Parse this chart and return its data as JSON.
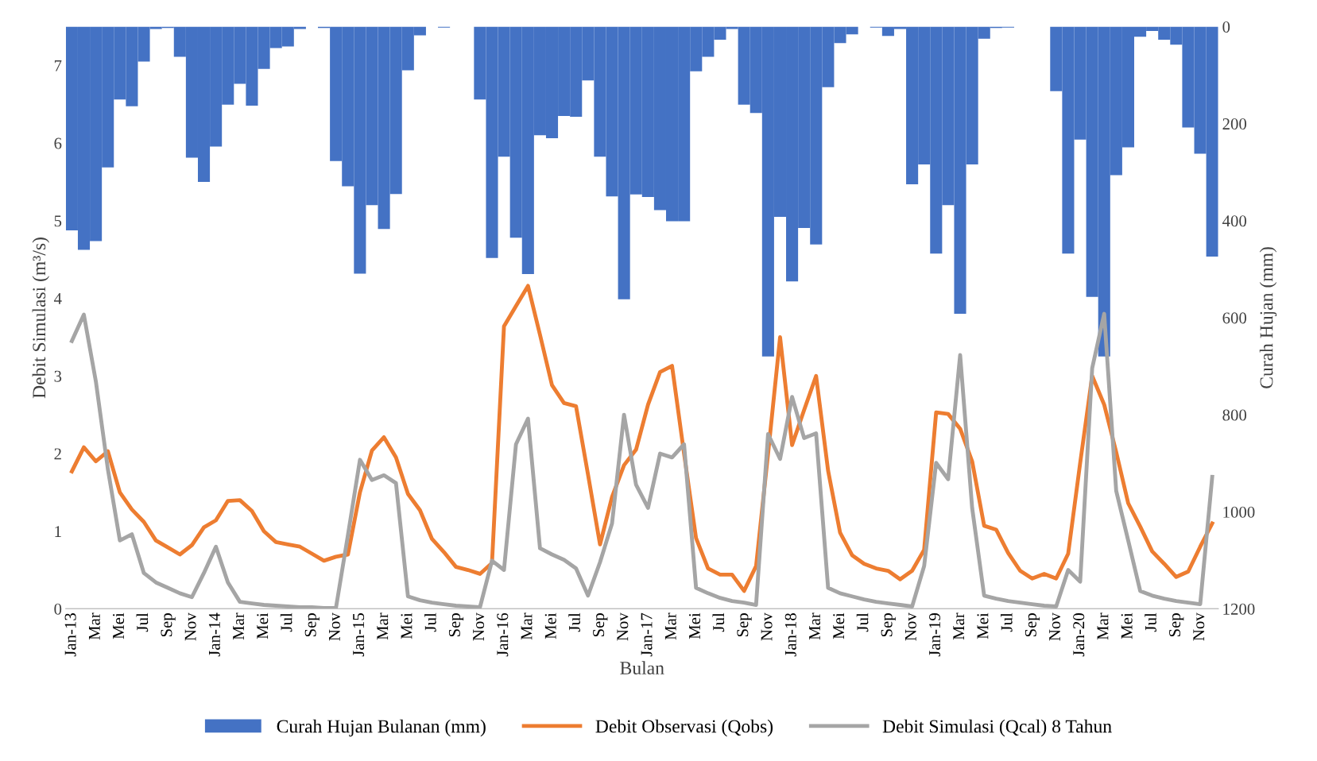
{
  "chart_data": {
    "type": "bar",
    "xlabel": "Bulan",
    "ylabel": "Debit Simulasi (m³/s)",
    "y2label": "Curah Hujan (mm)",
    "categories": [
      "Jan-13",
      null,
      "Mar",
      null,
      "Mei",
      null,
      "Jul",
      null,
      "Sep",
      null,
      "Nov",
      null,
      "Jan-14",
      null,
      "Mar",
      null,
      "Mei",
      null,
      "Jul",
      null,
      "Sep",
      null,
      "Nov",
      null,
      "Jan-15",
      null,
      "Mar",
      null,
      "Mei",
      null,
      "Jul",
      null,
      "Sep",
      null,
      "Nov",
      null,
      "Jan-16",
      null,
      "Mar",
      null,
      "Mei",
      null,
      "Jul",
      null,
      "Sep",
      null,
      "Nov",
      null,
      "Jan-17",
      null,
      "Mar",
      null,
      "Mei",
      null,
      "Jul",
      null,
      "Sep",
      null,
      "Nov",
      null,
      "Jan-18",
      null,
      "Mar",
      null,
      "Mei",
      null,
      "Jul",
      null,
      "Sep",
      null,
      "Nov",
      null,
      "Jan-19",
      null,
      "Mar",
      null,
      "Mei",
      null,
      "Jul",
      null,
      "Sep",
      null,
      "Nov",
      null,
      "Jan-20",
      null,
      "Mar",
      null,
      "Mei",
      null,
      "Jul",
      null,
      "Sep",
      null,
      "Nov",
      null
    ],
    "series": [
      {
        "name": "Curah Hujan Bulanan (mm)",
        "axis": "y2",
        "color": "#4472c4",
        "values": [
          420,
          460,
          442,
          290,
          150,
          164,
          72,
          5,
          3,
          62,
          270,
          320,
          247,
          161,
          118,
          163,
          87,
          44,
          41,
          5,
          0,
          3,
          277,
          329,
          509,
          368,
          417,
          345,
          90,
          18,
          0,
          2,
          0,
          0,
          150,
          477,
          268,
          435,
          510,
          224,
          230,
          184,
          186,
          111,
          268,
          350,
          562,
          346,
          351,
          378,
          401,
          401,
          92,
          62,
          27,
          5,
          161,
          178,
          680,
          392,
          525,
          415,
          449,
          125,
          34,
          16,
          0,
          2,
          19,
          5,
          325,
          284,
          468,
          368,
          592,
          284,
          25,
          3,
          2,
          null,
          null,
          null,
          133,
          468,
          233,
          557,
          680,
          306,
          249,
          21,
          9,
          27,
          37,
          208,
          262,
          474
        ]
      },
      {
        "name": "Debit Observasi (Qobs)",
        "type": "line",
        "color": "#ed7d31",
        "values": [
          1.77,
          2.08,
          1.9,
          2.03,
          1.5,
          1.28,
          1.12,
          0.88,
          0.79,
          0.7,
          0.82,
          1.05,
          1.14,
          1.39,
          1.4,
          1.26,
          1.0,
          0.86,
          0.83,
          0.8,
          0.71,
          0.62,
          0.67,
          0.7,
          1.5,
          2.04,
          2.21,
          1.95,
          1.48,
          1.27,
          0.9,
          0.73,
          0.54,
          0.5,
          0.45,
          0.59,
          3.64,
          3.9,
          4.16,
          3.53,
          2.88,
          2.65,
          2.61,
          1.73,
          0.83,
          1.44,
          1.85,
          2.05,
          2.63,
          3.05,
          3.13,
          2.0,
          0.91,
          0.52,
          0.44,
          0.44,
          0.23,
          0.55,
          2.0,
          3.5,
          2.11,
          2.56,
          3.0,
          1.78,
          0.98,
          0.69,
          0.58,
          0.52,
          0.49,
          0.38,
          0.49,
          0.76,
          2.53,
          2.51,
          2.32,
          1.9,
          1.07,
          1.02,
          0.72,
          0.49,
          0.39,
          0.45,
          0.39,
          0.71,
          1.88,
          3.0,
          2.63,
          2.02,
          1.36,
          1.06,
          0.74,
          0.58,
          0.41,
          0.48,
          0.8,
          1.1
        ]
      },
      {
        "name": "Debit Simulasi (Qcal) 8 Tahun",
        "type": "line",
        "color": "#a5a5a5",
        "values": [
          3.45,
          3.79,
          2.93,
          1.8,
          0.88,
          0.96,
          0.46,
          0.34,
          0.27,
          0.2,
          0.15,
          0.46,
          0.8,
          0.34,
          0.09,
          0.07,
          0.05,
          0.04,
          0.03,
          0.02,
          0.02,
          0.01,
          0.01,
          0.95,
          1.92,
          1.66,
          1.72,
          1.62,
          0.16,
          0.11,
          0.08,
          0.06,
          0.04,
          0.03,
          0.02,
          0.62,
          0.5,
          2.12,
          2.45,
          0.78,
          0.7,
          0.63,
          0.52,
          0.17,
          0.6,
          1.1,
          2.5,
          1.6,
          1.3,
          2.0,
          1.95,
          2.12,
          0.27,
          0.2,
          0.14,
          0.1,
          0.08,
          0.05,
          2.25,
          1.93,
          2.73,
          2.2,
          2.26,
          0.27,
          0.2,
          0.16,
          0.12,
          0.09,
          0.07,
          0.05,
          0.03,
          0.55,
          1.88,
          1.67,
          3.27,
          1.3,
          0.17,
          0.13,
          0.1,
          0.08,
          0.06,
          0.04,
          0.03,
          0.5,
          0.35,
          3.1,
          3.8,
          1.52,
          0.88,
          0.23,
          0.17,
          0.13,
          0.1,
          0.08,
          0.06,
          1.7
        ]
      }
    ],
    "ylim": [
      0,
      7.5
    ],
    "yticks": [
      0,
      1,
      2,
      3,
      4,
      5,
      6,
      7
    ],
    "y2lim": [
      1200,
      0
    ],
    "y2ticks": [
      0,
      200,
      400,
      600,
      800,
      1000,
      1200
    ],
    "grid": false,
    "legend": "bottom"
  }
}
